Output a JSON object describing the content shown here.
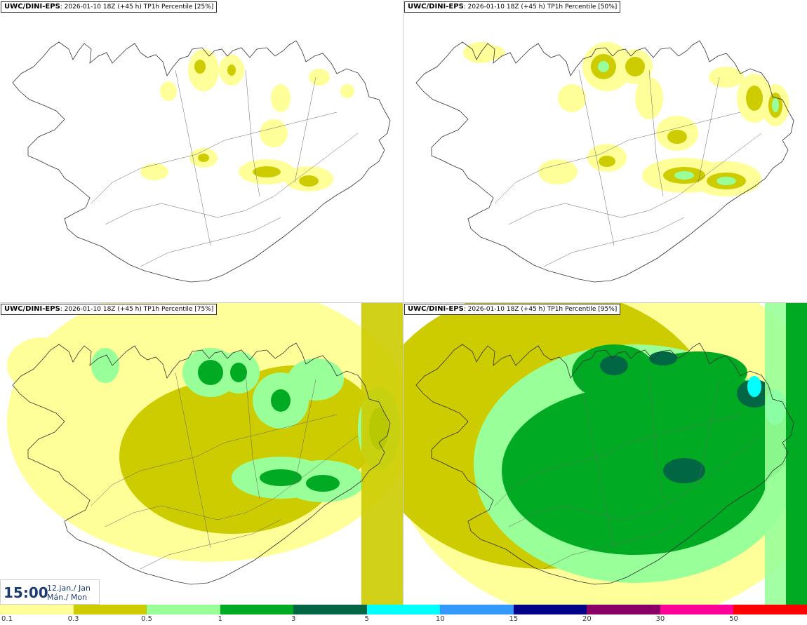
{
  "panels": [
    {
      "model": "UWC/DINI-EPS",
      "run": "2026-01-10 18Z (+45 h)",
      "param": "TP1h Percentile",
      "pct": "[25%]",
      "level": 1
    },
    {
      "model": "UWC/DINI-EPS",
      "run": "2026-01-10 18Z (+45 h)",
      "param": "TP1h Percentile",
      "pct": "[50%]",
      "level": 2
    },
    {
      "model": "UWC/DINI-EPS",
      "run": "2026-01-10 18Z (+45 h)",
      "param": "TP1h Percentile",
      "pct": "[75%]",
      "level": 3
    },
    {
      "model": "UWC/DINI-EPS",
      "run": "2026-01-10 18Z (+45 h)",
      "param": "TP1h Percentile",
      "pct": "[95%]",
      "level": 4
    }
  ],
  "valid_time": {
    "time": "15:00",
    "date_line1": "12.jan./ Jan",
    "date_line2": "Mán./ Mon"
  },
  "legend": {
    "colors": [
      "#ffff99",
      "#cccc00",
      "#99ff99",
      "#00aa22",
      "#006644",
      "#00ffff",
      "#3399ff",
      "#000088",
      "#880066",
      "#ff0099",
      "#ff0000"
    ],
    "labels": [
      "0.1",
      "0.3",
      "0.5",
      "1",
      "3",
      "5",
      "10",
      "15",
      "20",
      "30",
      "50"
    ]
  }
}
